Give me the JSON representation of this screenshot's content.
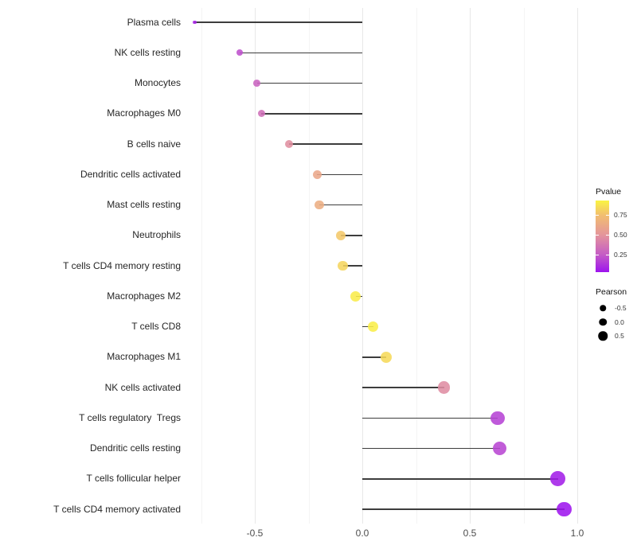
{
  "chart_data": {
    "type": "scatter",
    "variant": "lollipop",
    "title": "",
    "xlabel": "",
    "ylabel": "",
    "xlim": [
      -0.85,
      1.05
    ],
    "x_major_ticks": [
      -0.5,
      0.0,
      0.5,
      1.0
    ],
    "x_major_tick_labels": [
      "-0.5",
      "0.0",
      "0.5",
      "1.0"
    ],
    "x_minor_gridlines": [
      -0.75,
      -0.25,
      0.25,
      0.75
    ],
    "grid": true,
    "legend_position": "right",
    "rows": [
      {
        "label": "Plasma cells",
        "pearson": -0.78,
        "pvalue": 0.08
      },
      {
        "label": "NK cells resting",
        "pearson": -0.57,
        "pvalue": 0.21
      },
      {
        "label": "Monocytes",
        "pearson": -0.49,
        "pvalue": 0.28
      },
      {
        "label": "Macrophages M0",
        "pearson": -0.47,
        "pvalue": 0.33
      },
      {
        "label": "B cells naive",
        "pearson": -0.34,
        "pvalue": 0.47
      },
      {
        "label": "Dendritic cells activated",
        "pearson": -0.21,
        "pvalue": 0.6
      },
      {
        "label": "Mast cells resting",
        "pearson": -0.2,
        "pvalue": 0.64
      },
      {
        "label": "Neutrophils",
        "pearson": -0.1,
        "pvalue": 0.78
      },
      {
        "label": "T cells CD4 memory resting",
        "pearson": -0.09,
        "pvalue": 0.82
      },
      {
        "label": "Macrophages M2",
        "pearson": -0.03,
        "pvalue": 0.9
      },
      {
        "label": "T cells CD8",
        "pearson": 0.05,
        "pvalue": 0.91
      },
      {
        "label": "Macrophages M1",
        "pearson": 0.11,
        "pvalue": 0.84
      },
      {
        "label": "NK cells activated",
        "pearson": 0.38,
        "pvalue": 0.46
      },
      {
        "label": "T cells regulatory  Tregs",
        "pearson": 0.63,
        "pvalue": 0.17
      },
      {
        "label": "Dendritic cells resting",
        "pearson": 0.64,
        "pvalue": 0.18
      },
      {
        "label": "T cells follicular helper",
        "pearson": 0.91,
        "pvalue": 0.06
      },
      {
        "label": "T cells CD4 memory activated",
        "pearson": 0.94,
        "pvalue": 0.03
      }
    ],
    "legend": {
      "pvalue": {
        "title": "Pvalue",
        "range": [
          0.03,
          0.93
        ],
        "ticks": [
          0.25,
          0.5,
          0.75
        ],
        "tick_labels": [
          "0.25",
          "0.50",
          "0.75"
        ],
        "gradient_stops": [
          {
            "p": 0.03,
            "color": "#9d13ee"
          },
          {
            "p": 0.25,
            "color": "#c55cc5"
          },
          {
            "p": 0.5,
            "color": "#e4959b"
          },
          {
            "p": 0.75,
            "color": "#f2bf6f"
          },
          {
            "p": 0.93,
            "color": "#faf442"
          }
        ]
      },
      "pearson": {
        "title": "Pearson",
        "entries": [
          {
            "label": "-0.5",
            "value": -0.5
          },
          {
            "label": "0.0",
            "value": 0.0
          },
          {
            "label": "0.5",
            "value": 0.5
          }
        ]
      }
    },
    "colors": {
      "stick": "#3d3d3d",
      "grid_major": "#e8e8e8",
      "grid_minor": "#f4f4f4",
      "axis_text": "#4d4d4d",
      "label_text": "#262626",
      "background": "#ffffff"
    }
  }
}
